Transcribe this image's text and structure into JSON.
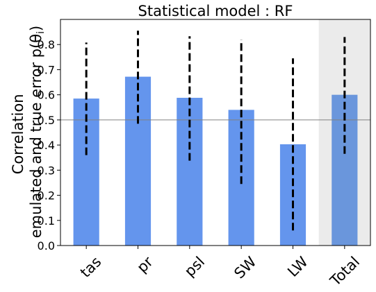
{
  "chart_data": {
    "type": "bar",
    "title": "Statistical model : RF",
    "ylabel_line1": "Correlation",
    "ylabel_line2": "emulated and true error p(θ",
    "ylabel_sub": "i",
    "ylabel_close": ")",
    "categories": [
      "tas",
      "pr",
      "psl",
      "SW",
      "LW",
      "Total"
    ],
    "values": [
      0.585,
      0.672,
      0.588,
      0.54,
      0.403,
      0.6
    ],
    "error_low": [
      0.36,
      0.485,
      0.338,
      0.245,
      0.06,
      0.365
    ],
    "error_high": [
      0.808,
      0.855,
      0.833,
      0.82,
      0.745,
      0.83
    ],
    "ylim": [
      0.0,
      0.9
    ],
    "yticks": [
      "0.0",
      "0.1",
      "0.2",
      "0.3",
      "0.4",
      "0.5",
      "0.6",
      "0.7",
      "0.8"
    ],
    "reference_line": 0.5,
    "highlight_category": "Total",
    "grid": false,
    "colors": {
      "bar": "#6495ed",
      "bar_highlight": "#6a96dc",
      "highlight_background": "#ebebeb",
      "error_bar": "#000000",
      "reference_line": "#808080"
    }
  }
}
